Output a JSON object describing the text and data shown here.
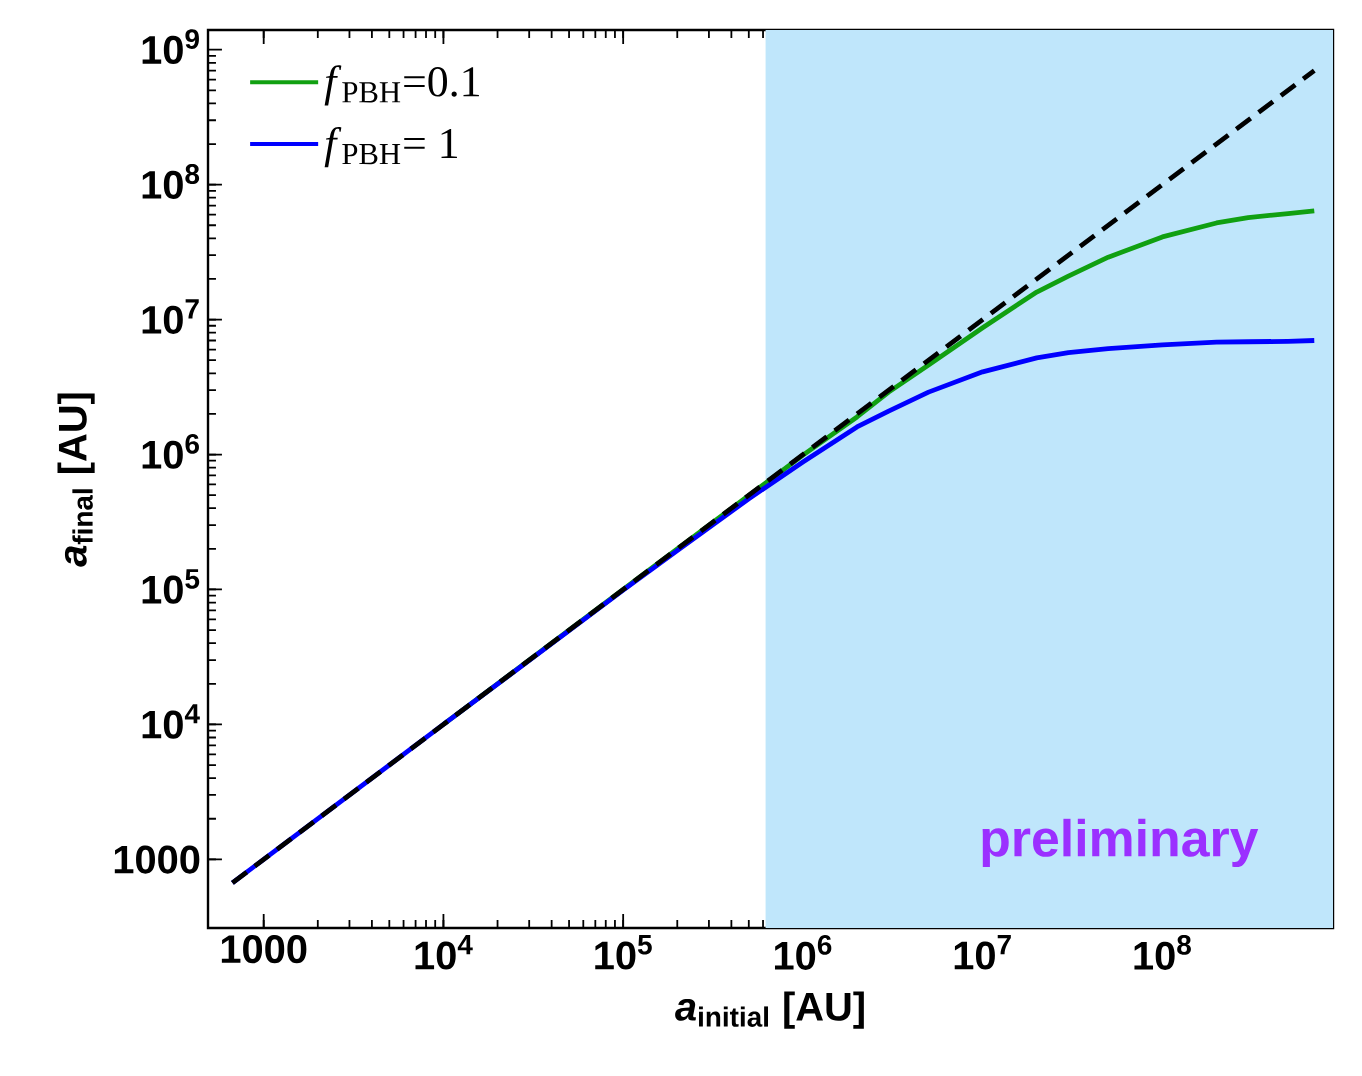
{
  "chart_data": {
    "type": "line",
    "xlabel": "*a*$_{initial}$ [AU]",
    "ylabel": "*a*$_{final}$ [AU]",
    "log": "xy",
    "xlim": [
      490,
      890000000
    ],
    "ylim": [
      310,
      1400000000
    ],
    "xticks": [
      1000,
      {
        "value": 10000,
        "label": "10$^{4}$"
      },
      {
        "value": 100000,
        "label": "10$^{5}$"
      },
      {
        "value": 1000000,
        "label": "10$^{6}$"
      },
      {
        "value": 10000000,
        "label": "10$^{7}$"
      },
      {
        "value": 100000000,
        "label": "10$^{8}$"
      }
    ],
    "yticks": [
      1000,
      {
        "value": 10000,
        "label": "10$^{4}$"
      },
      {
        "value": 100000,
        "label": "10$^{5}$"
      },
      {
        "value": 1000000,
        "label": "10$^{6}$"
      },
      {
        "value": 10000000,
        "label": "10$^{7}$"
      },
      {
        "value": 100000000,
        "label": "10$^{8}$"
      },
      {
        "value": 1000000000,
        "label": "10$^{9}$"
      }
    ],
    "x": [
      670,
      1000,
      10000,
      100000,
      200000,
      500000,
      1000000,
      2000000,
      3000000,
      5000000,
      10000000,
      20000000,
      30000000,
      50000000,
      100000000,
      200000000,
      300000000,
      500000000,
      700000000
    ],
    "series": [
      {
        "name": "*f*$_{PBH}$=0.1",
        "color": "#11a011",
        "line_style": "solid",
        "values": [
          null,
          null,
          10000,
          100000,
          200000,
          497000,
          990000,
          1900000,
          2900000,
          4600000,
          8700000,
          16000000,
          21000000,
          29000000,
          41000000,
          52000000,
          57000000,
          61000000,
          64000000
        ]
      },
      {
        "name": "*f*$_{PBH}$= 1",
        "color": "#0000ff",
        "line_style": "solid",
        "values": [
          670,
          1000,
          10000,
          99000,
          194000,
          470000,
          880000,
          1600000,
          2100000,
          2900000,
          4100000,
          5200000,
          5700000,
          6100000,
          6500000,
          6800000,
          6850000,
          6900000,
          7000000
        ]
      },
      {
        "color": "#000000",
        "line_style": "dashed",
        "x": [
          670,
          700000000
        ],
        "values": [
          670,
          700000000
        ]
      }
    ],
    "bands": [
      {
        "axis": "x",
        "from": 620000,
        "to": 890000000,
        "color": "#bfe6fb"
      }
    ],
    "annotations": [
      "preliminary"
    ],
    "legend": "top left",
    "marker": "none",
    "grid": false
  }
}
